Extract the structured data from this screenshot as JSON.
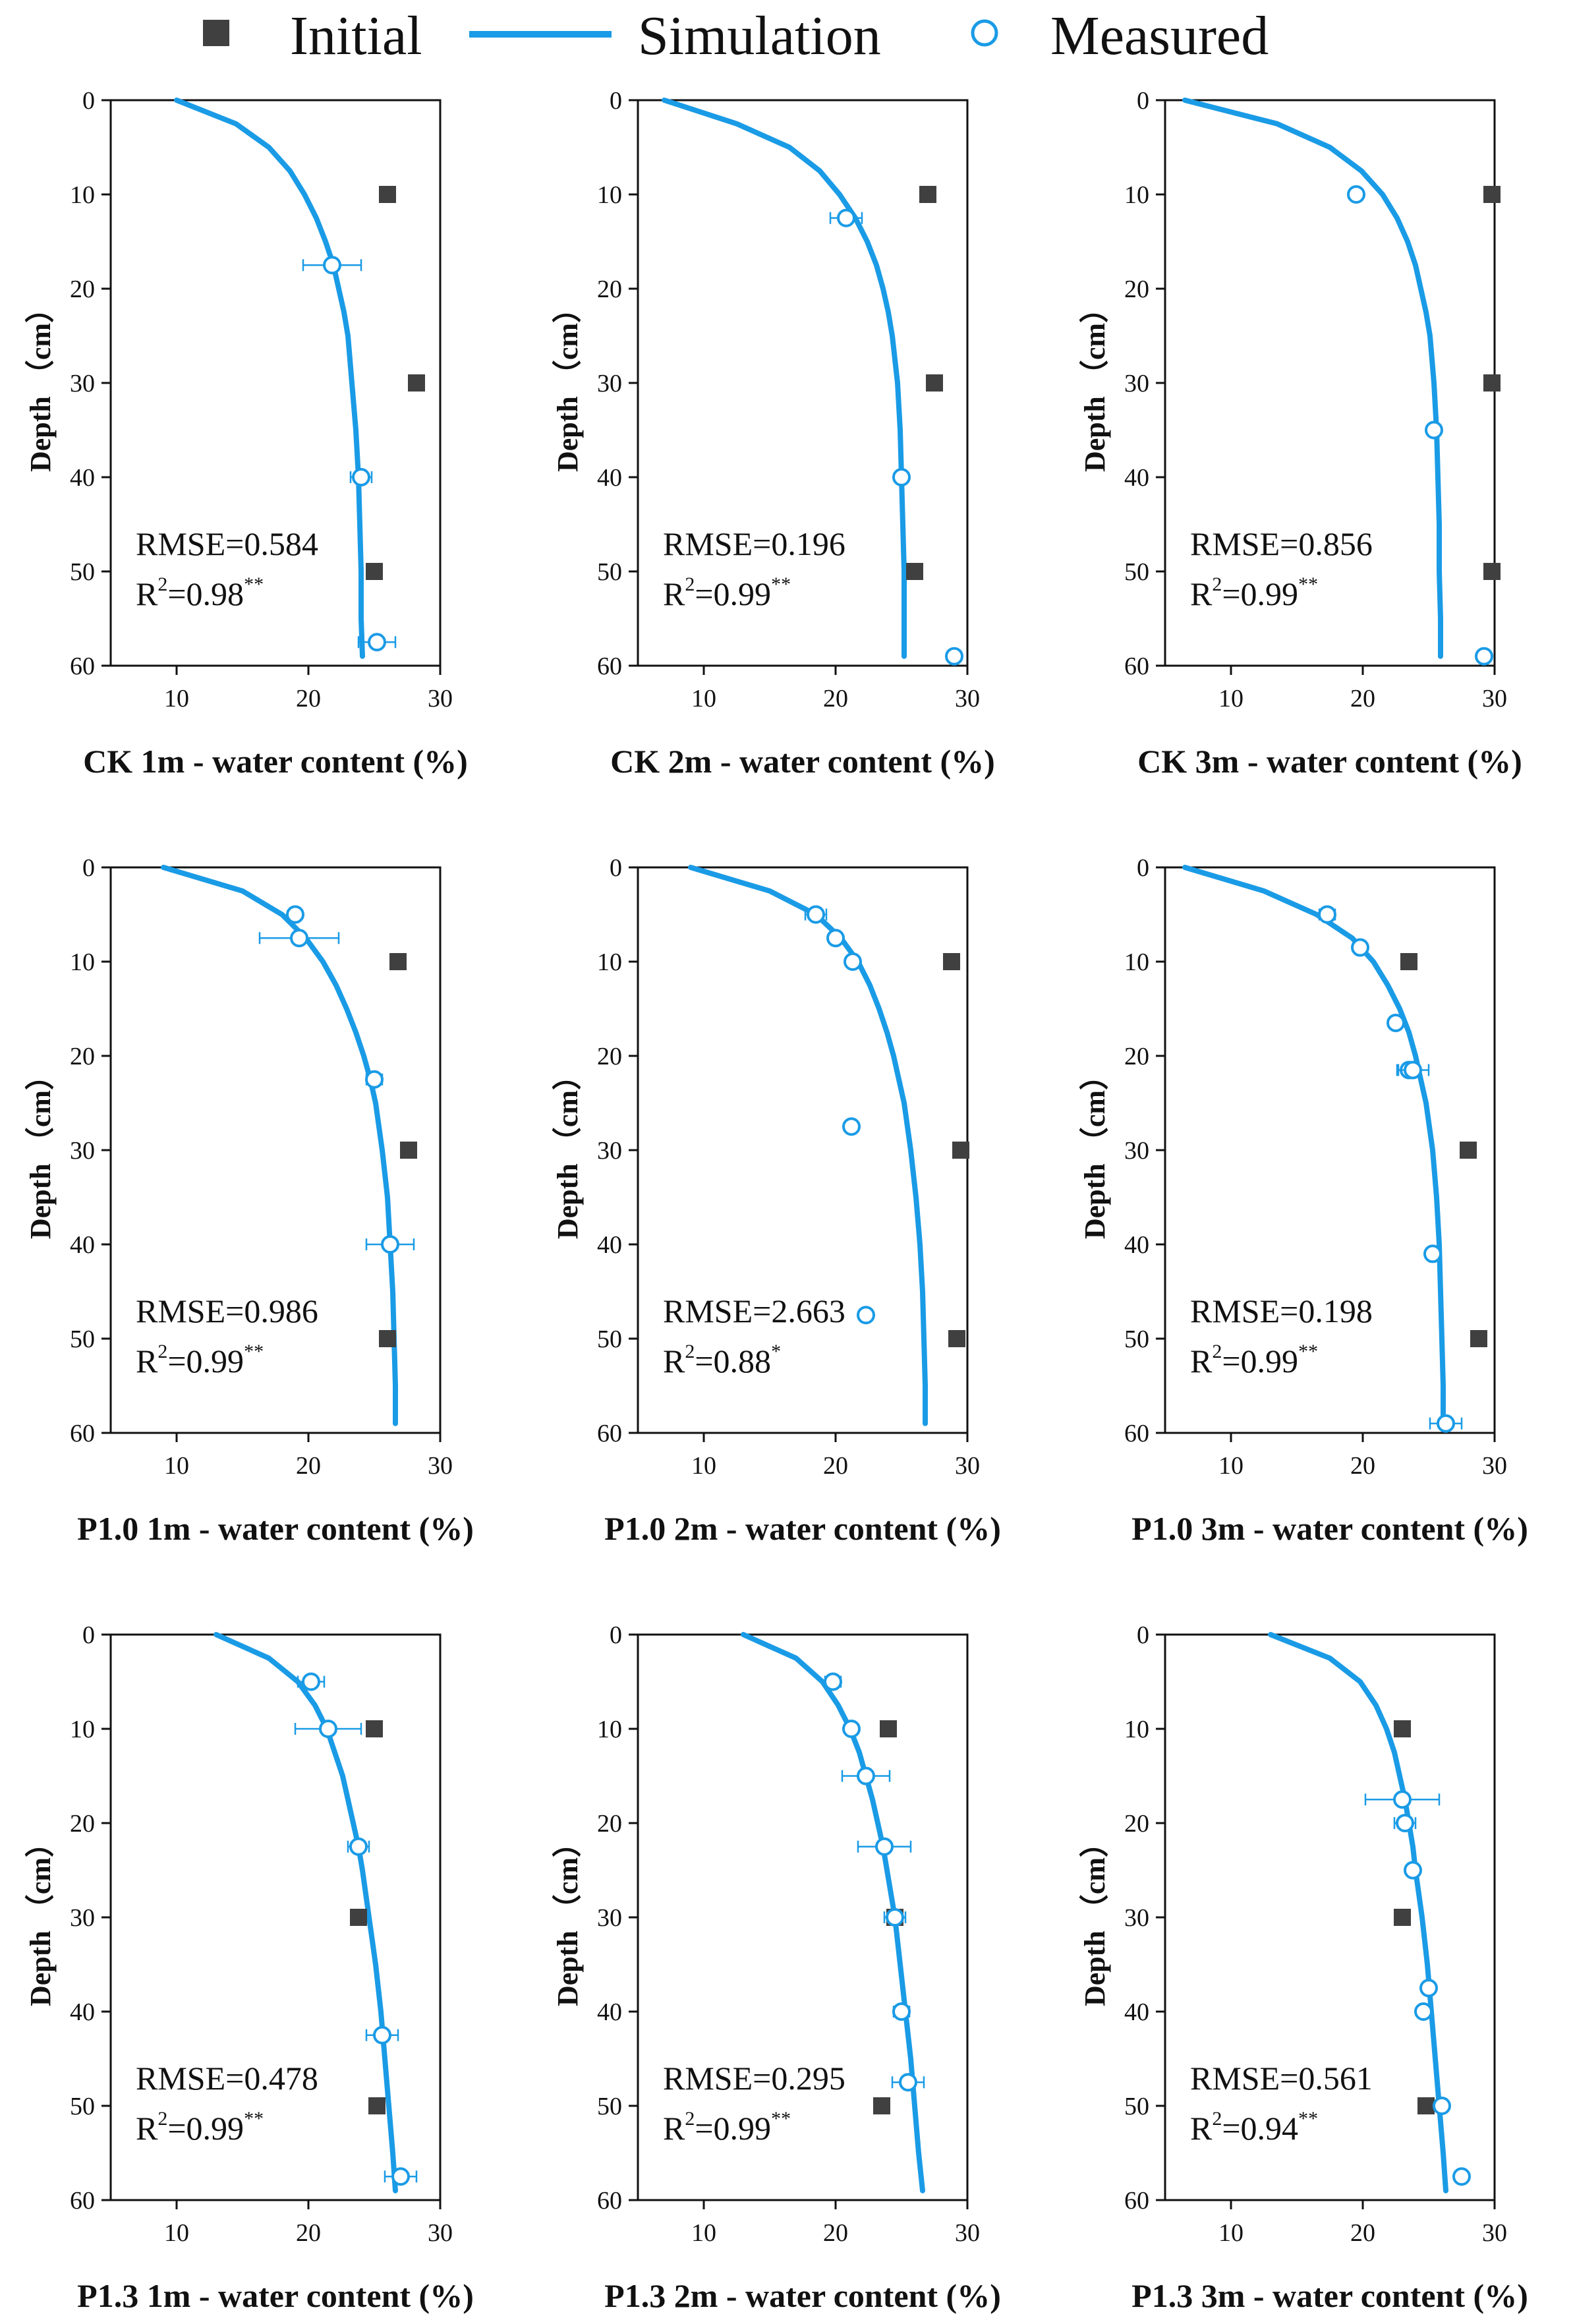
{
  "legend": {
    "initial": "Initial",
    "simulation": "Simulation",
    "measured": "Measured"
  },
  "colors": {
    "simulation": "#1a9be6",
    "measured_edge": "#1a9be6",
    "initial": "#404040",
    "axis": "#111111"
  },
  "chart_data": [
    {
      "type": "scatter",
      "panel": "CK 1m",
      "xlabel": "CK 1m - water content (%)",
      "ylabel": "Depth （cm）",
      "xlim": [
        5,
        30
      ],
      "ylim": [
        0,
        60
      ],
      "xticks": [
        10,
        20,
        30
      ],
      "yticks": [
        0,
        10,
        20,
        30,
        40,
        50,
        60
      ],
      "rmse": "RMSE=0.584",
      "r2": "R2=0.98**",
      "initial": [
        [
          26.0,
          10
        ],
        [
          28.2,
          30
        ],
        [
          25.0,
          50
        ]
      ],
      "measured": [
        [
          21.8,
          17.5,
          2.2
        ],
        [
          24.0,
          40,
          0.8
        ],
        [
          25.2,
          57.5,
          1.4
        ]
      ],
      "simulation": [
        [
          10.0,
          0
        ],
        [
          14.5,
          2.5
        ],
        [
          17.0,
          5
        ],
        [
          18.6,
          7.5
        ],
        [
          19.7,
          10
        ],
        [
          20.6,
          12.5
        ],
        [
          21.3,
          15
        ],
        [
          21.9,
          17.5
        ],
        [
          22.3,
          20
        ],
        [
          22.7,
          22.5
        ],
        [
          23.0,
          25
        ],
        [
          23.3,
          30
        ],
        [
          23.6,
          35
        ],
        [
          23.8,
          40
        ],
        [
          23.9,
          45
        ],
        [
          24.0,
          50
        ],
        [
          24.0,
          55
        ],
        [
          24.1,
          59
        ]
      ]
    },
    {
      "type": "scatter",
      "panel": "CK 2m",
      "xlabel": "CK 2m - water content (%)",
      "ylabel": "Depth （cm）",
      "xlim": [
        5,
        30
      ],
      "ylim": [
        0,
        60
      ],
      "xticks": [
        10,
        20,
        30
      ],
      "yticks": [
        0,
        10,
        20,
        30,
        40,
        50,
        60
      ],
      "rmse": "RMSE=0.196",
      "r2": "R2=0.99**",
      "initial": [
        [
          27.0,
          10
        ],
        [
          27.5,
          30
        ],
        [
          26.0,
          50
        ]
      ],
      "measured": [
        [
          20.8,
          12.5,
          1.2
        ],
        [
          25.0,
          40,
          0
        ],
        [
          29.0,
          59,
          0
        ]
      ],
      "simulation": [
        [
          7.0,
          0
        ],
        [
          12.5,
          2.5
        ],
        [
          16.5,
          5
        ],
        [
          18.8,
          7.5
        ],
        [
          20.3,
          10
        ],
        [
          21.5,
          12.5
        ],
        [
          22.4,
          15
        ],
        [
          23.1,
          17.5
        ],
        [
          23.6,
          20
        ],
        [
          24.0,
          22.5
        ],
        [
          24.3,
          25
        ],
        [
          24.7,
          30
        ],
        [
          24.9,
          35
        ],
        [
          25.0,
          40
        ],
        [
          25.1,
          45
        ],
        [
          25.2,
          50
        ],
        [
          25.2,
          55
        ],
        [
          25.2,
          59
        ]
      ]
    },
    {
      "type": "scatter",
      "panel": "CK 3m",
      "xlabel": "CK 3m - water content (%)",
      "ylabel": "Depth （cm）",
      "xlim": [
        5,
        30
      ],
      "ylim": [
        0,
        60
      ],
      "xticks": [
        10,
        20,
        30
      ],
      "yticks": [
        0,
        10,
        20,
        30,
        40,
        50,
        60
      ],
      "rmse": "RMSE=0.856",
      "r2": "R2=0.99**",
      "initial": [
        [
          29.8,
          10
        ],
        [
          29.8,
          30
        ],
        [
          29.8,
          50
        ]
      ],
      "measured": [
        [
          19.5,
          10,
          0
        ],
        [
          25.4,
          35,
          0
        ],
        [
          29.2,
          59,
          0
        ]
      ],
      "simulation": [
        [
          6.5,
          0
        ],
        [
          13.5,
          2.5
        ],
        [
          17.5,
          5
        ],
        [
          19.9,
          7.5
        ],
        [
          21.5,
          10
        ],
        [
          22.6,
          12.5
        ],
        [
          23.4,
          15
        ],
        [
          24.0,
          17.5
        ],
        [
          24.4,
          20
        ],
        [
          24.8,
          22.5
        ],
        [
          25.1,
          25
        ],
        [
          25.4,
          30
        ],
        [
          25.6,
          35
        ],
        [
          25.7,
          40
        ],
        [
          25.8,
          45
        ],
        [
          25.8,
          50
        ],
        [
          25.9,
          55
        ],
        [
          25.9,
          59
        ]
      ]
    },
    {
      "type": "scatter",
      "panel": "P1.0 1m",
      "xlabel": "P1.0 1m - water content (%)",
      "ylabel": "Depth （cm）",
      "xlim": [
        5,
        30
      ],
      "ylim": [
        0,
        60
      ],
      "xticks": [
        10,
        20,
        30
      ],
      "yticks": [
        0,
        10,
        20,
        30,
        40,
        50,
        60
      ],
      "rmse": "RMSE=0.986",
      "r2": "R2=0.99**",
      "initial": [
        [
          26.8,
          10
        ],
        [
          27.6,
          30
        ],
        [
          26.0,
          50
        ]
      ],
      "measured": [
        [
          19.0,
          5,
          0
        ],
        [
          19.3,
          7.5,
          3.0
        ],
        [
          25.0,
          22.5,
          0.6
        ],
        [
          26.2,
          40,
          1.8
        ]
      ],
      "simulation": [
        [
          9.0,
          0
        ],
        [
          15.0,
          2.5
        ],
        [
          18.0,
          5
        ],
        [
          19.8,
          7.5
        ],
        [
          21.1,
          10
        ],
        [
          22.1,
          12.5
        ],
        [
          22.9,
          15
        ],
        [
          23.6,
          17.5
        ],
        [
          24.2,
          20
        ],
        [
          24.7,
          22.5
        ],
        [
          25.1,
          25
        ],
        [
          25.6,
          30
        ],
        [
          26.0,
          35
        ],
        [
          26.2,
          40
        ],
        [
          26.4,
          45
        ],
        [
          26.5,
          50
        ],
        [
          26.6,
          55
        ],
        [
          26.6,
          59
        ]
      ]
    },
    {
      "type": "scatter",
      "panel": "P1.0 2m",
      "xlabel": "P1.0 2m - water content (%)",
      "ylabel": "Depth （cm）",
      "xlim": [
        5,
        30
      ],
      "ylim": [
        0,
        60
      ],
      "xticks": [
        10,
        20,
        30
      ],
      "yticks": [
        0,
        10,
        20,
        30,
        40,
        50,
        60
      ],
      "rmse": "RMSE=2.663",
      "r2": "R2=0.88*",
      "initial": [
        [
          28.8,
          10
        ],
        [
          29.5,
          30
        ],
        [
          29.2,
          50
        ]
      ],
      "measured": [
        [
          18.5,
          5,
          0.8
        ],
        [
          20.0,
          7.5,
          0
        ],
        [
          21.3,
          10,
          0
        ],
        [
          21.2,
          27.5,
          0
        ],
        [
          22.3,
          47.5,
          0
        ]
      ],
      "simulation": [
        [
          9.0,
          0
        ],
        [
          15.0,
          2.5
        ],
        [
          18.5,
          5
        ],
        [
          20.4,
          7.5
        ],
        [
          21.7,
          10
        ],
        [
          22.6,
          12.5
        ],
        [
          23.3,
          15
        ],
        [
          23.9,
          17.5
        ],
        [
          24.4,
          20
        ],
        [
          24.8,
          22.5
        ],
        [
          25.2,
          25
        ],
        [
          25.7,
          30
        ],
        [
          26.1,
          35
        ],
        [
          26.4,
          40
        ],
        [
          26.6,
          45
        ],
        [
          26.7,
          50
        ],
        [
          26.8,
          55
        ],
        [
          26.8,
          59
        ]
      ]
    },
    {
      "type": "scatter",
      "panel": "P1.0 3m",
      "xlabel": "P1.0 3m - water content (%)",
      "ylabel": "Depth （cm）",
      "xlim": [
        5,
        30
      ],
      "ylim": [
        0,
        60
      ],
      "xticks": [
        10,
        20,
        30
      ],
      "yticks": [
        0,
        10,
        20,
        30,
        40,
        50,
        60
      ],
      "rmse": "RMSE=0.198",
      "r2": "R2=0.99**",
      "initial": [
        [
          23.5,
          10
        ],
        [
          28.0,
          30
        ],
        [
          28.8,
          50
        ]
      ],
      "measured": [
        [
          17.3,
          5,
          0.6
        ],
        [
          19.8,
          8.5,
          0
        ],
        [
          22.5,
          16.5,
          0
        ],
        [
          23.5,
          21.5,
          0.8
        ],
        [
          23.8,
          21.5,
          1.2
        ],
        [
          25.3,
          41,
          0
        ],
        [
          26.3,
          59,
          1.2
        ]
      ],
      "simulation": [
        [
          6.5,
          0
        ],
        [
          12.5,
          2.5
        ],
        [
          16.5,
          5
        ],
        [
          19.2,
          7.5
        ],
        [
          20.8,
          10
        ],
        [
          21.9,
          12.5
        ],
        [
          22.8,
          15
        ],
        [
          23.5,
          17.5
        ],
        [
          24.0,
          20
        ],
        [
          24.4,
          22.5
        ],
        [
          24.8,
          25
        ],
        [
          25.3,
          30
        ],
        [
          25.6,
          35
        ],
        [
          25.8,
          40
        ],
        [
          25.9,
          45
        ],
        [
          26.0,
          50
        ],
        [
          26.1,
          55
        ],
        [
          26.1,
          59
        ]
      ]
    },
    {
      "type": "scatter",
      "panel": "P1.3 1m",
      "xlabel": "P1.3 1m - water content (%)",
      "ylabel": "Depth （cm）",
      "xlim": [
        5,
        30
      ],
      "ylim": [
        0,
        60
      ],
      "xticks": [
        10,
        20,
        30
      ],
      "yticks": [
        0,
        10,
        20,
        30,
        40,
        50,
        60
      ],
      "rmse": "RMSE=0.478",
      "r2": "R2=0.99**",
      "initial": [
        [
          25.0,
          10
        ],
        [
          23.8,
          30
        ],
        [
          25.2,
          50
        ]
      ],
      "measured": [
        [
          20.2,
          5,
          1.0
        ],
        [
          21.5,
          10,
          2.5
        ],
        [
          23.8,
          22.5,
          0.8
        ],
        [
          25.6,
          42.5,
          1.2
        ],
        [
          27.0,
          57.5,
          1.2
        ]
      ],
      "simulation": [
        [
          13.0,
          0
        ],
        [
          17.0,
          2.5
        ],
        [
          19.2,
          5
        ],
        [
          20.5,
          7.5
        ],
        [
          21.4,
          10
        ],
        [
          22.0,
          12.5
        ],
        [
          22.6,
          15
        ],
        [
          23.0,
          17.5
        ],
        [
          23.4,
          20
        ],
        [
          23.8,
          22.5
        ],
        [
          24.1,
          25
        ],
        [
          24.6,
          30
        ],
        [
          25.1,
          35
        ],
        [
          25.5,
          40
        ],
        [
          25.8,
          45
        ],
        [
          26.1,
          50
        ],
        [
          26.4,
          55
        ],
        [
          26.6,
          59
        ]
      ]
    },
    {
      "type": "scatter",
      "panel": "P1.3 2m",
      "xlabel": "P1.3 2m - water content (%)",
      "ylabel": "Depth （cm）",
      "xlim": [
        5,
        30
      ],
      "ylim": [
        0,
        60
      ],
      "xticks": [
        10,
        20,
        30
      ],
      "yticks": [
        0,
        10,
        20,
        30,
        40,
        50,
        60
      ],
      "rmse": "RMSE=0.295",
      "r2": "R2=0.99**",
      "initial": [
        [
          24.0,
          10
        ],
        [
          24.5,
          30
        ],
        [
          23.5,
          50
        ]
      ],
      "measured": [
        [
          19.8,
          5,
          0.6
        ],
        [
          21.2,
          10,
          0
        ],
        [
          22.3,
          15,
          1.8
        ],
        [
          23.7,
          22.5,
          2.0
        ],
        [
          24.5,
          30,
          0.8
        ],
        [
          25.0,
          40,
          0.6
        ],
        [
          25.5,
          47.5,
          1.2
        ]
      ],
      "simulation": [
        [
          13.0,
          0
        ],
        [
          17.0,
          2.5
        ],
        [
          19.0,
          5
        ],
        [
          20.2,
          7.5
        ],
        [
          21.1,
          10
        ],
        [
          21.8,
          12.5
        ],
        [
          22.3,
          15
        ],
        [
          22.8,
          17.5
        ],
        [
          23.2,
          20
        ],
        [
          23.6,
          22.5
        ],
        [
          23.9,
          25
        ],
        [
          24.5,
          30
        ],
        [
          24.9,
          35
        ],
        [
          25.3,
          40
        ],
        [
          25.7,
          45
        ],
        [
          26.0,
          50
        ],
        [
          26.3,
          55
        ],
        [
          26.6,
          59
        ]
      ]
    },
    {
      "type": "scatter",
      "panel": "P1.3 3m",
      "xlabel": "P1.3 3m - water content (%)",
      "ylabel": "Depth （cm）",
      "xlim": [
        5,
        30
      ],
      "ylim": [
        0,
        60
      ],
      "xticks": [
        10,
        20,
        30
      ],
      "yticks": [
        0,
        10,
        20,
        30,
        40,
        50,
        60
      ],
      "rmse": "RMSE=0.561",
      "r2": "R2=0.94**",
      "initial": [
        [
          23.0,
          10
        ],
        [
          23.0,
          30
        ],
        [
          24.8,
          50
        ]
      ],
      "measured": [
        [
          23.0,
          17.5,
          2.8
        ],
        [
          23.2,
          20,
          0.8
        ],
        [
          23.8,
          25,
          0
        ],
        [
          25.0,
          37.5,
          0
        ],
        [
          24.6,
          40,
          0
        ],
        [
          26.0,
          50,
          0
        ],
        [
          27.5,
          57.5,
          0
        ]
      ],
      "simulation": [
        [
          13.0,
          0
        ],
        [
          17.5,
          2.5
        ],
        [
          19.8,
          5
        ],
        [
          21.0,
          7.5
        ],
        [
          21.8,
          10
        ],
        [
          22.4,
          12.5
        ],
        [
          22.8,
          15
        ],
        [
          23.2,
          17.5
        ],
        [
          23.5,
          20
        ],
        [
          23.8,
          22.5
        ],
        [
          24.0,
          25
        ],
        [
          24.5,
          30
        ],
        [
          24.9,
          35
        ],
        [
          25.2,
          40
        ],
        [
          25.5,
          45
        ],
        [
          25.8,
          50
        ],
        [
          26.1,
          55
        ],
        [
          26.3,
          59
        ]
      ]
    }
  ]
}
